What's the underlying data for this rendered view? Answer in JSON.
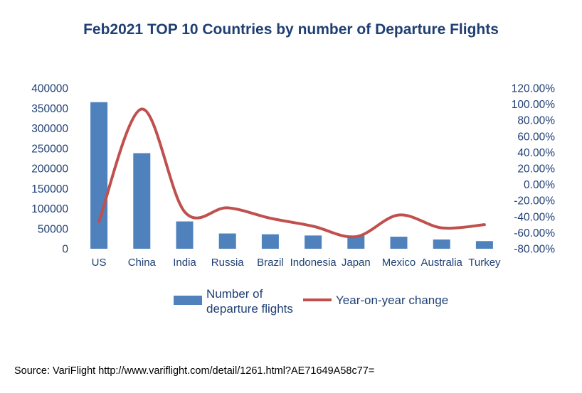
{
  "source_text": "Source: VariFlight http://www.variflight.com/detail/1261.html?AE71649A58c77=",
  "chart_data": {
    "type": "bar",
    "title": "Feb2021 TOP 10 Countries by number of Departure Flights",
    "categories": [
      "US",
      "China",
      "India",
      "Russia",
      "Brazil",
      "Indonesia",
      "Japan",
      "Mexico",
      "Australia",
      "Turkey"
    ],
    "series": [
      {
        "name": "Number of departure flights",
        "name_lines": [
          "Number of",
          "departure flights"
        ],
        "type": "bar",
        "axis": "left",
        "color": "#4f81bd",
        "values": [
          365000,
          238000,
          68000,
          38000,
          36000,
          33000,
          33000,
          30000,
          23000,
          19000
        ]
      },
      {
        "name": "Year-on-year change",
        "type": "line",
        "axis": "right",
        "color": "#c0504d",
        "values": [
          -46,
          94,
          -34,
          -29,
          -42,
          -52,
          -65,
          -38,
          -54,
          -50
        ]
      }
    ],
    "y_left": {
      "lim": [
        0,
        400000
      ],
      "ticks": [
        0,
        50000,
        100000,
        150000,
        200000,
        250000,
        300000,
        350000,
        400000
      ]
    },
    "y_right": {
      "lim": [
        -80,
        120
      ],
      "ticks": [
        -80,
        -60,
        -40,
        -20,
        0,
        20,
        40,
        60,
        80,
        100,
        120
      ],
      "tick_labels": [
        "-80.00%",
        "-60.00%",
        "-40.00%",
        "-20.00%",
        "0.00%",
        "20.00%",
        "40.00%",
        "60.00%",
        "80.00%",
        "100.00%",
        "120.00%"
      ]
    },
    "grid": false,
    "legend_position": "bottom"
  }
}
